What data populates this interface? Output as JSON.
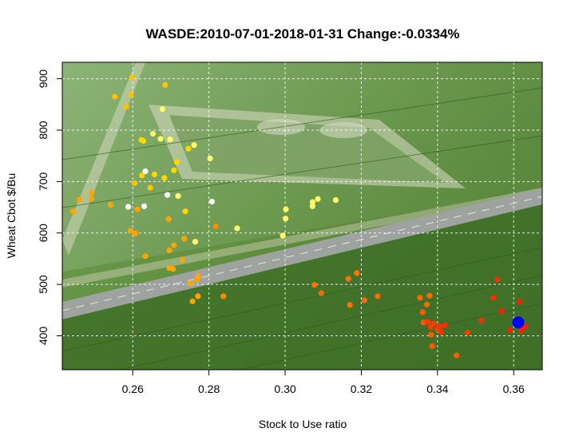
{
  "chart_data": {
    "type": "scatter",
    "title": "WASDE:2010-07-01-2018-01-31 Change:-0.0334%",
    "xlabel": "Stock to Use ratio",
    "ylabel": "Wheat Cbot $/Bu",
    "xlim": [
      0.2415,
      0.3675
    ],
    "ylim": [
      334,
      932
    ],
    "xticks": [
      0.26,
      0.28,
      0.3,
      0.32,
      0.34,
      0.36
    ],
    "xtick_labels": [
      "0.26",
      "0.28",
      "0.30",
      "0.32",
      "0.34",
      "0.36"
    ],
    "yticks": [
      400,
      500,
      600,
      700,
      800,
      900
    ],
    "ytick_labels": [
      "400",
      "500",
      "600",
      "700",
      "800",
      "900"
    ],
    "grid": true,
    "background": "aerial photo of green wheat fields with a road",
    "color_scale": "time (oldest white/yellow to newest red)",
    "points": [
      {
        "x": 0.2598,
        "y": 903,
        "color": "#ffc400"
      },
      {
        "x": 0.2685,
        "y": 888,
        "color": "#ffc400"
      },
      {
        "x": 0.2583,
        "y": 846,
        "color": "#ffc400"
      },
      {
        "x": 0.2553,
        "y": 865,
        "color": "#ffc400"
      },
      {
        "x": 0.2595,
        "y": 869,
        "color": "#ffc400"
      },
      {
        "x": 0.2678,
        "y": 841,
        "color": "#ffff66"
      },
      {
        "x": 0.2653,
        "y": 793,
        "color": "#ffff66"
      },
      {
        "x": 0.2673,
        "y": 783,
        "color": "#ffff66"
      },
      {
        "x": 0.2628,
        "y": 779,
        "color": "#ffd700"
      },
      {
        "x": 0.2623,
        "y": 781,
        "color": "#ffd700"
      },
      {
        "x": 0.2698,
        "y": 782,
        "color": "#ffff66"
      },
      {
        "x": 0.2761,
        "y": 771,
        "color": "#ffff66"
      },
      {
        "x": 0.2746,
        "y": 764,
        "color": "#ffd700"
      },
      {
        "x": 0.2803,
        "y": 745,
        "color": "#ffff66"
      },
      {
        "x": 0.2716,
        "y": 738,
        "color": "#ffd700"
      },
      {
        "x": 0.2633,
        "y": 720,
        "color": "#ffffff"
      },
      {
        "x": 0.2657,
        "y": 714,
        "color": "#ffd700"
      },
      {
        "x": 0.2624,
        "y": 712,
        "color": "#ffd700"
      },
      {
        "x": 0.2708,
        "y": 722,
        "color": "#ffd700"
      },
      {
        "x": 0.2683,
        "y": 707,
        "color": "#ffd700"
      },
      {
        "x": 0.2605,
        "y": 697,
        "color": "#ffc400"
      },
      {
        "x": 0.2646,
        "y": 688,
        "color": "#ffc400"
      },
      {
        "x": 0.2492,
        "y": 679,
        "color": "#ffa500"
      },
      {
        "x": 0.246,
        "y": 665,
        "color": "#ffa500"
      },
      {
        "x": 0.2492,
        "y": 667,
        "color": "#ffa500"
      },
      {
        "x": 0.2542,
        "y": 655,
        "color": "#ffa500"
      },
      {
        "x": 0.2443,
        "y": 642,
        "color": "#ffa500"
      },
      {
        "x": 0.2612,
        "y": 646,
        "color": "#ffa500"
      },
      {
        "x": 0.2588,
        "y": 651,
        "color": "#ffffff"
      },
      {
        "x": 0.263,
        "y": 652,
        "color": "#ffffff"
      },
      {
        "x": 0.2691,
        "y": 674,
        "color": "#ffffff"
      },
      {
        "x": 0.2719,
        "y": 672,
        "color": "#ffff66"
      },
      {
        "x": 0.2738,
        "y": 642,
        "color": "#ffd700"
      },
      {
        "x": 0.2808,
        "y": 661,
        "color": "#ffffff"
      },
      {
        "x": 0.2694,
        "y": 627,
        "color": "#ffa500"
      },
      {
        "x": 0.2594,
        "y": 604,
        "color": "#ffa500"
      },
      {
        "x": 0.2607,
        "y": 599,
        "color": "#ffa500"
      },
      {
        "x": 0.2818,
        "y": 613,
        "color": "#ff8c00"
      },
      {
        "x": 0.2874,
        "y": 609,
        "color": "#ffff66"
      },
      {
        "x": 0.3002,
        "y": 646,
        "color": "#ffff66"
      },
      {
        "x": 0.3001,
        "y": 628,
        "color": "#ffff66"
      },
      {
        "x": 0.3072,
        "y": 660,
        "color": "#ffff66"
      },
      {
        "x": 0.3086,
        "y": 666,
        "color": "#ffff66"
      },
      {
        "x": 0.3072,
        "y": 652,
        "color": "#ffff66"
      },
      {
        "x": 0.3133,
        "y": 664,
        "color": "#ffff66"
      },
      {
        "x": 0.2994,
        "y": 595,
        "color": "#ffff66"
      },
      {
        "x": 0.2764,
        "y": 583,
        "color": "#ffff66"
      },
      {
        "x": 0.2735,
        "y": 589,
        "color": "#ffa500"
      },
      {
        "x": 0.2708,
        "y": 576,
        "color": "#ffa500"
      },
      {
        "x": 0.2696,
        "y": 566,
        "color": "#ffa500"
      },
      {
        "x": 0.2633,
        "y": 555,
        "color": "#ffa500"
      },
      {
        "x": 0.273,
        "y": 548,
        "color": "#ffa500"
      },
      {
        "x": 0.2696,
        "y": 532,
        "color": "#ffa500"
      },
      {
        "x": 0.2706,
        "y": 530,
        "color": "#ffa500"
      },
      {
        "x": 0.2772,
        "y": 516,
        "color": "#ffa500"
      },
      {
        "x": 0.2768,
        "y": 509,
        "color": "#ffa500"
      },
      {
        "x": 0.2751,
        "y": 502,
        "color": "#ffa500"
      },
      {
        "x": 0.2771,
        "y": 477,
        "color": "#ffa500"
      },
      {
        "x": 0.2757,
        "y": 467,
        "color": "#ffa500"
      },
      {
        "x": 0.2838,
        "y": 477,
        "color": "#ff8c00"
      },
      {
        "x": 0.3077,
        "y": 499,
        "color": "#ff7300"
      },
      {
        "x": 0.3095,
        "y": 483,
        "color": "#ff6a00"
      },
      {
        "x": 0.3166,
        "y": 511,
        "color": "#ff7300"
      },
      {
        "x": 0.3188,
        "y": 522,
        "color": "#ff7300"
      },
      {
        "x": 0.317,
        "y": 460,
        "color": "#ff7300"
      },
      {
        "x": 0.3208,
        "y": 469,
        "color": "#ff6a00"
      },
      {
        "x": 0.3243,
        "y": 477,
        "color": "#ff6a00"
      },
      {
        "x": 0.3354,
        "y": 474,
        "color": "#ff6a00"
      },
      {
        "x": 0.3379,
        "y": 478,
        "color": "#ff6a00"
      },
      {
        "x": 0.3372,
        "y": 461,
        "color": "#ff6a00"
      },
      {
        "x": 0.3361,
        "y": 446,
        "color": "#ff5a00"
      },
      {
        "x": 0.3363,
        "y": 426,
        "color": "#ff5a00"
      },
      {
        "x": 0.3374,
        "y": 427,
        "color": "#ff3c00"
      },
      {
        "x": 0.339,
        "y": 424,
        "color": "#ff3c00"
      },
      {
        "x": 0.3382,
        "y": 417,
        "color": "#ff3c00"
      },
      {
        "x": 0.34,
        "y": 413,
        "color": "#ff3c00"
      },
      {
        "x": 0.3405,
        "y": 419,
        "color": "#ff2d00"
      },
      {
        "x": 0.342,
        "y": 420,
        "color": "#ff2d00"
      },
      {
        "x": 0.341,
        "y": 407,
        "color": "#ff2d00"
      },
      {
        "x": 0.3383,
        "y": 402,
        "color": "#ff5a00"
      },
      {
        "x": 0.3386,
        "y": 380,
        "color": "#ff5a00"
      },
      {
        "x": 0.345,
        "y": 362,
        "color": "#ff5a00"
      },
      {
        "x": 0.3479,
        "y": 406,
        "color": "#ff3c00"
      },
      {
        "x": 0.3515,
        "y": 430,
        "color": "#ff2d00"
      },
      {
        "x": 0.3547,
        "y": 474,
        "color": "#ff2d00"
      },
      {
        "x": 0.3557,
        "y": 510,
        "color": "#ff2d00"
      },
      {
        "x": 0.3568,
        "y": 448,
        "color": "#ff1e00"
      },
      {
        "x": 0.359,
        "y": 411,
        "color": "#ff1e00"
      },
      {
        "x": 0.3616,
        "y": 466,
        "color": "#ff1e00"
      },
      {
        "x": 0.363,
        "y": 418,
        "color": "#ff1e00"
      },
      {
        "x": 0.362,
        "y": 410,
        "color": "#ff1e00"
      }
    ],
    "highlight_point": {
      "x": 0.3612,
      "y": 426,
      "color": "#0000ff"
    }
  }
}
